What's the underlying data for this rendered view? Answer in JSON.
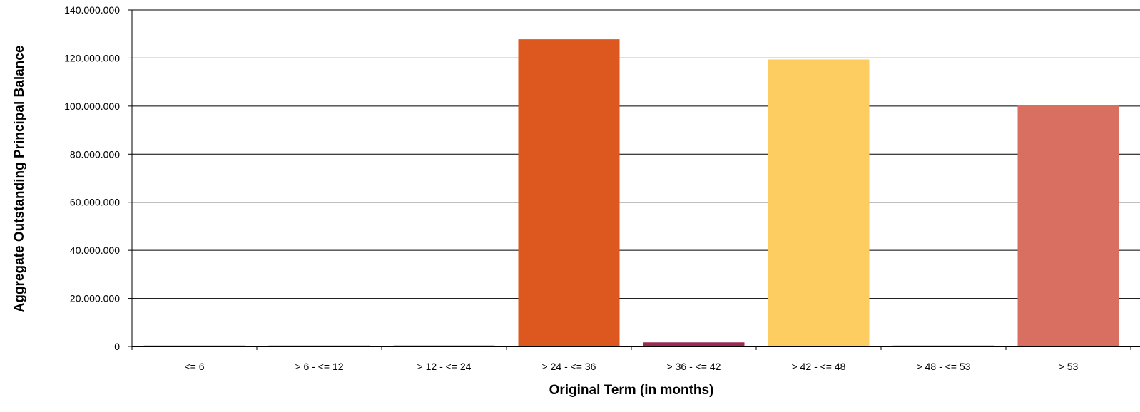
{
  "chart_data": {
    "type": "bar",
    "title": "",
    "xlabel": "Original Term (in months)",
    "ylabel": "Aggregate Outstanding Principal Balance",
    "categories": [
      "<= 6",
      "> 6 - <= 12",
      "> 12 - <= 24",
      "> 24 - <= 36",
      "> 36 - <= 42",
      "> 42 - <= 48",
      "> 48 - <= 53",
      "> 53"
    ],
    "values": [
      150000,
      100000,
      400000,
      127800000,
      1700000,
      119400000,
      400000,
      100500000
    ],
    "bar_colors": [
      "#5a3e2b",
      "#3a2a1e",
      "#4f7a63",
      "#dc581f",
      "#9b2a55",
      "#fdcd62",
      "#4fa3bf",
      "#d86f61"
    ],
    "ylim": [
      0,
      140000000
    ],
    "yticks": [
      0,
      20000000,
      40000000,
      60000000,
      80000000,
      100000000,
      120000000,
      140000000
    ],
    "ytick_labels": [
      "0",
      "20.000.000",
      "40.000.000",
      "60.000.000",
      "80.000.000",
      "100.000.000",
      "120.000.000",
      "140.000.000"
    ],
    "grid": true,
    "legend": "none"
  }
}
